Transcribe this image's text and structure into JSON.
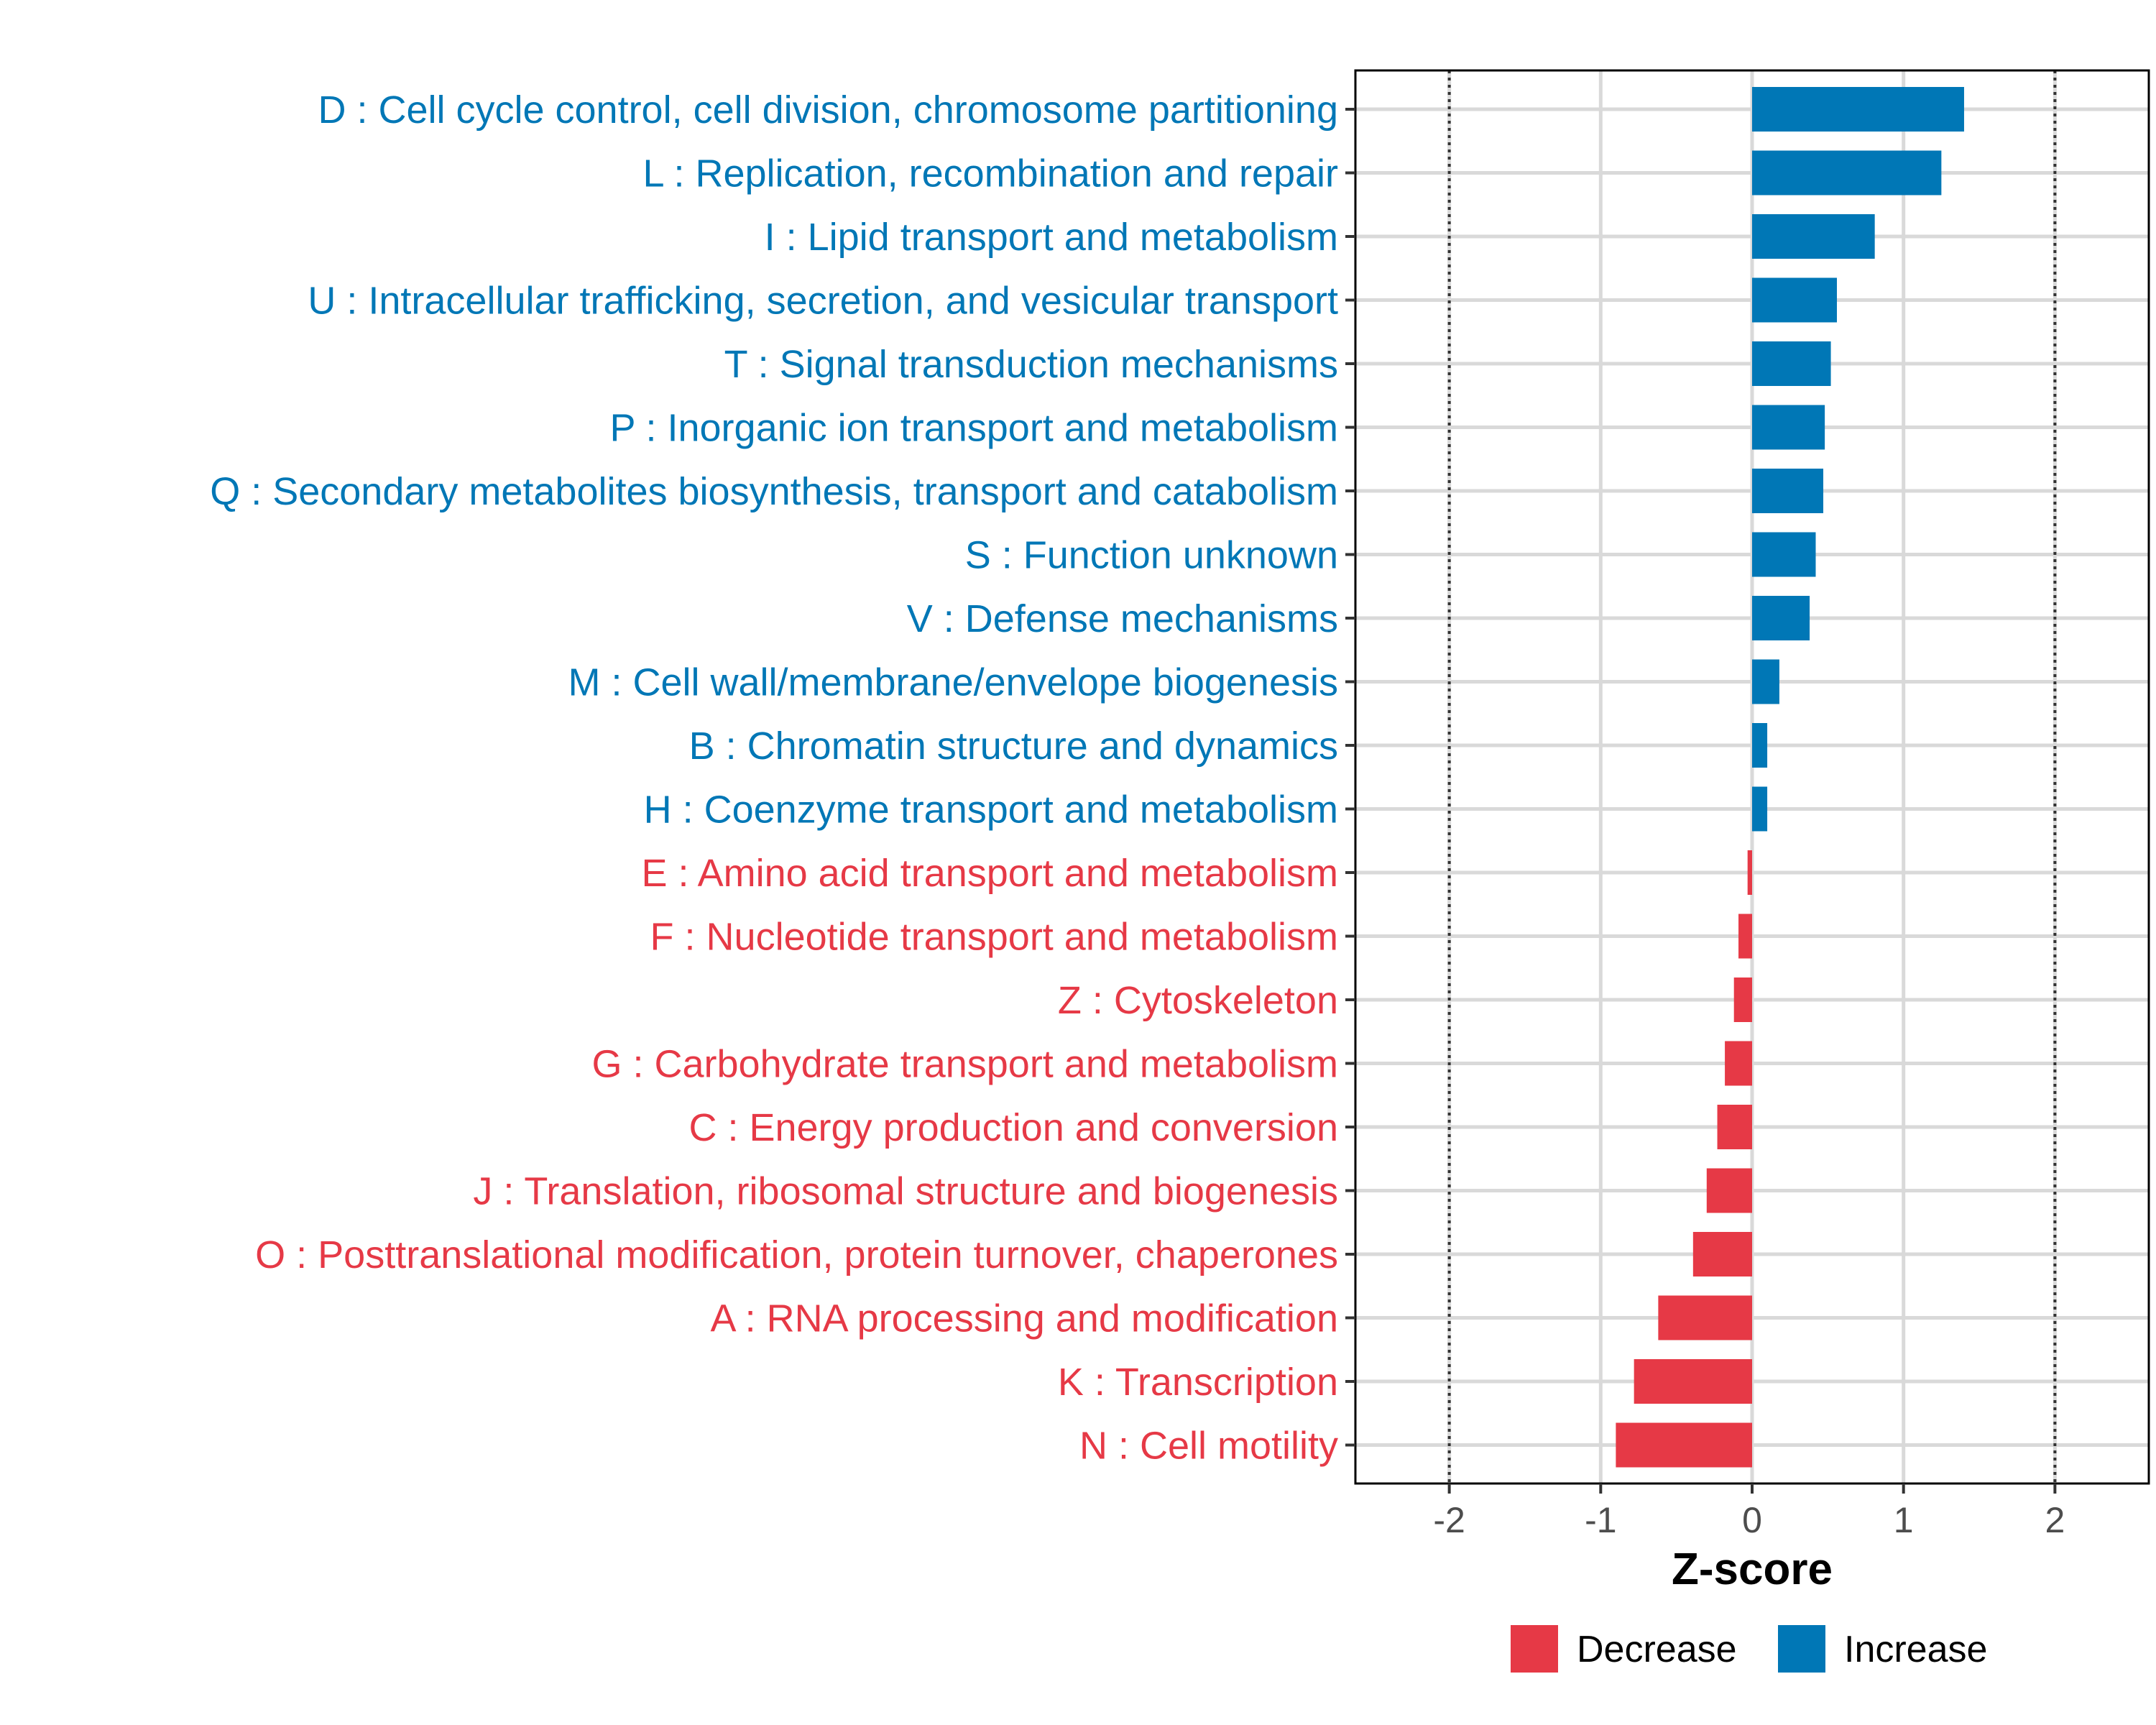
{
  "colors": {
    "decrease": "#E63946",
    "increase": "#0077B6",
    "grid": "#d9d9d9",
    "panel_border": "#000000"
  },
  "chart_data": {
    "type": "bar",
    "orientation": "horizontal",
    "categories": [
      "D : Cell cycle control, cell division, chromosome partitioning",
      "L : Replication, recombination and repair",
      "I : Lipid transport and metabolism",
      "U : Intracellular trafficking, secretion, and vesicular transport",
      "T : Signal transduction mechanisms",
      "P : Inorganic ion transport and metabolism",
      "Q : Secondary metabolites biosynthesis, transport and catabolism",
      "S : Function unknown",
      "V : Defense mechanisms",
      "M : Cell wall/membrane/envelope biogenesis",
      "B : Chromatin structure and dynamics",
      "H : Coenzyme transport and metabolism",
      "E : Amino acid transport and metabolism",
      "F : Nucleotide transport and metabolism",
      "Z : Cytoskeleton",
      "G : Carbohydrate transport and metabolism",
      "C : Energy production and conversion",
      "J : Translation, ribosomal structure and biogenesis",
      "O : Posttranslational modification, protein turnover, chaperones",
      "A : RNA processing and modification",
      "K : Transcription",
      "N : Cell motility"
    ],
    "values": [
      1.4,
      1.25,
      0.81,
      0.56,
      0.52,
      0.48,
      0.47,
      0.42,
      0.38,
      0.18,
      0.1,
      0.1,
      -0.03,
      -0.09,
      -0.12,
      -0.18,
      -0.23,
      -0.3,
      -0.39,
      -0.62,
      -0.78,
      -0.9
    ],
    "groups": [
      "Increase",
      "Increase",
      "Increase",
      "Increase",
      "Increase",
      "Increase",
      "Increase",
      "Increase",
      "Increase",
      "Increase",
      "Increase",
      "Increase",
      "Decrease",
      "Decrease",
      "Decrease",
      "Decrease",
      "Decrease",
      "Decrease",
      "Decrease",
      "Decrease",
      "Decrease",
      "Decrease"
    ],
    "xlabel": "Z-score",
    "ylabel": "",
    "xlim": [
      -2.62,
      2.62
    ],
    "xticks": [
      -2,
      -1,
      0,
      1,
      2
    ],
    "xtick_labels": [
      "-2",
      "-1",
      "0",
      "1",
      "2"
    ],
    "reference_lines": [
      -2,
      2
    ],
    "grid": true,
    "legend": {
      "position": "bottom",
      "entries": [
        {
          "label": "Decrease",
          "group": "Decrease"
        },
        {
          "label": "Increase",
          "group": "Increase"
        }
      ]
    }
  }
}
